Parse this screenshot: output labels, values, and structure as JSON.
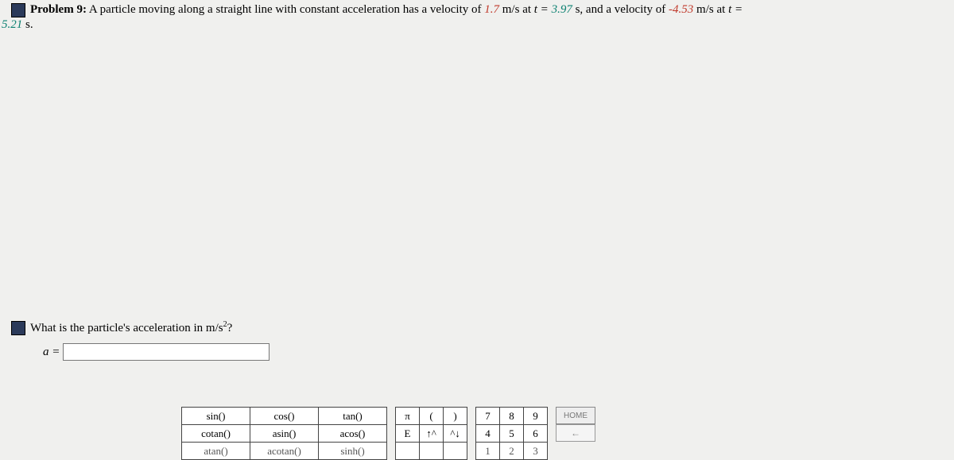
{
  "problem": {
    "label": "Problem 9:",
    "text_1": "A particle moving along a straight line with constant acceleration has a velocity of ",
    "v1": "1.7",
    "unit_ms": " m/s",
    "at_t": " at ",
    "t_eq": "t = ",
    "t1": "3.97",
    "sec": " s",
    "and_vel": ", and a velocity of ",
    "v2": "-4.53",
    "at_t2": " at ",
    "t2_line": "5.21",
    "sec2": " s."
  },
  "question": {
    "text": "What is the particle's acceleration in m/s",
    "exp": "2",
    "q": "?"
  },
  "answer": {
    "label": "a =",
    "value": "",
    "placeholder": ""
  },
  "keypad": {
    "fn": [
      [
        "sin()",
        "cos()",
        "tan()"
      ],
      [
        "cotan()",
        "asin()",
        "acos()"
      ],
      [
        "atan()",
        "acotan()",
        "sinh()"
      ]
    ],
    "sym": [
      [
        "π",
        "(",
        ")"
      ],
      [
        "E",
        "↑^",
        "^↓"
      ],
      [
        "",
        "",
        ""
      ]
    ],
    "num": [
      [
        "7",
        "8",
        "9"
      ],
      [
        "4",
        "5",
        "6"
      ],
      [
        "1",
        "2",
        "3"
      ]
    ],
    "home": "HOME",
    "arrow": "←"
  }
}
